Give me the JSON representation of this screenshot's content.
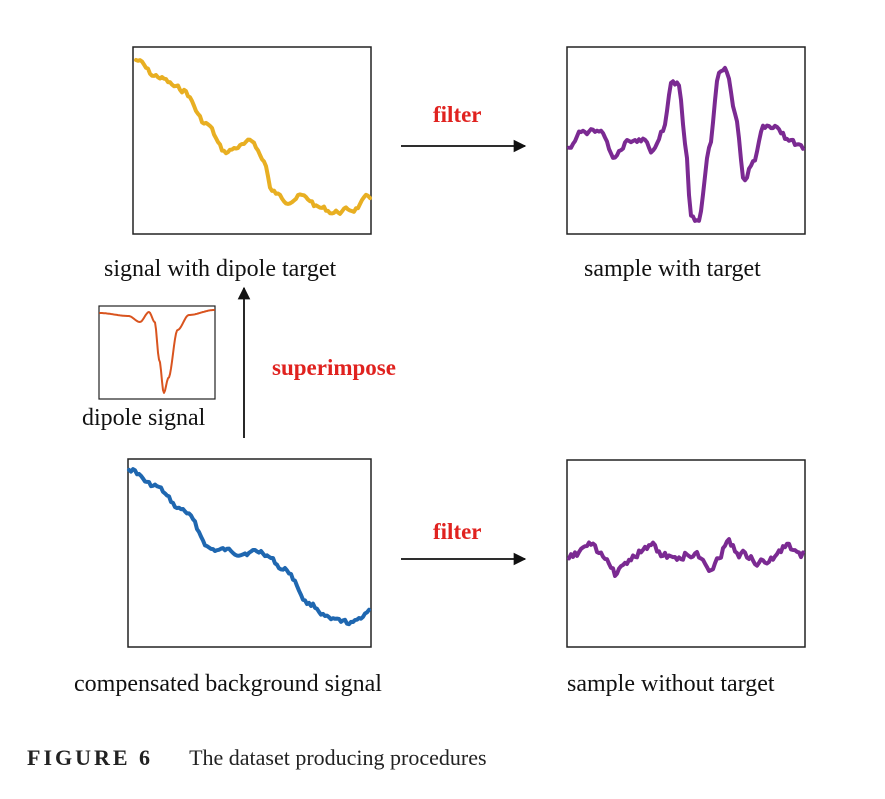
{
  "labels": {
    "signal_with_dipole": "signal with dipole target",
    "sample_with_target": "sample with target",
    "dipole_signal": "dipole signal",
    "compensated_background": "compensated background signal",
    "sample_without_target": "sample without target"
  },
  "actions": {
    "filter_top": "filter",
    "filter_bottom": "filter",
    "superimpose": "superimpose"
  },
  "caption": {
    "number": "FIGURE 6",
    "text": "The dataset producing procedures"
  },
  "colors": {
    "signal_with_dipole": "#E8AF22",
    "compensated_background": "#1F67B0",
    "filtered_sample": "#7B2A92",
    "dipole_signal": "#D9541F",
    "action_text": "#E0221F",
    "frame": "#222222",
    "arrow": "#111111"
  }
}
